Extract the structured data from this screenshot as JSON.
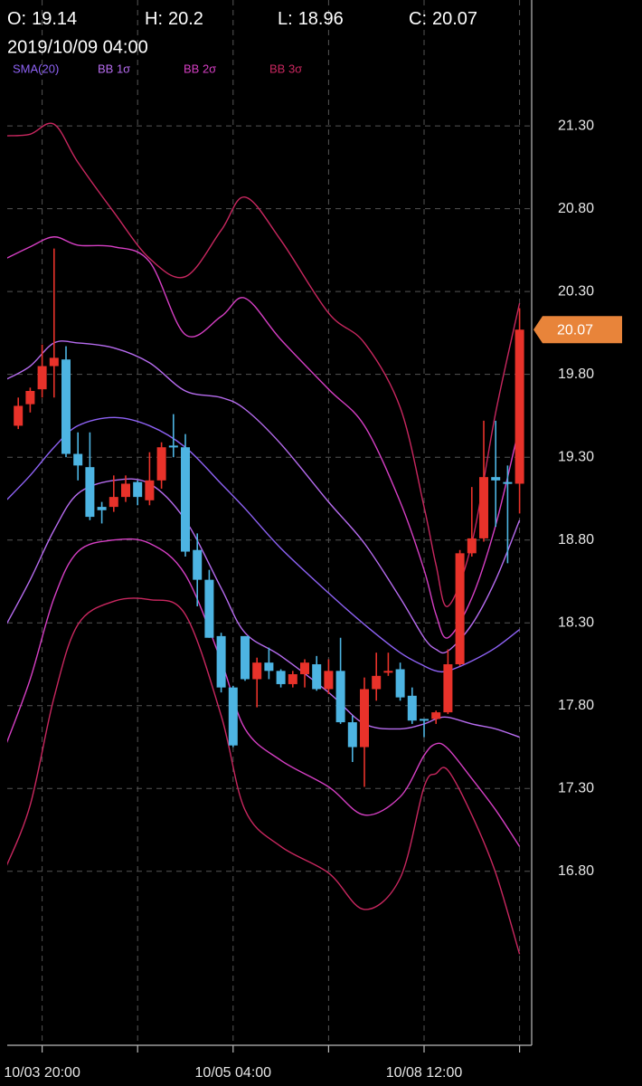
{
  "chart_data": {
    "type": "candlestick",
    "header": {
      "labels": [
        "O:",
        "H:",
        "L:",
        "C:"
      ],
      "datetime": "2019/10/09 04:00"
    },
    "categories": [
      null,
      null,
      "10/03 20:00",
      null,
      null,
      null,
      null,
      null,
      null,
      null,
      null,
      null,
      null,
      null,
      null,
      null,
      null,
      null,
      "10/05 04:00",
      null,
      null,
      null,
      null,
      null,
      null,
      null,
      null,
      null,
      null,
      null,
      null,
      null,
      null,
      null,
      "10/08 12:00",
      null,
      null,
      null,
      null,
      null,
      null,
      null,
      null
    ],
    "open": [
      19.49,
      19.62,
      19.71,
      19.85,
      19.89,
      19.32,
      19.24,
      19.0,
      19.0,
      19.06,
      19.15,
      19.04,
      19.16,
      19.37,
      19.36,
      18.74,
      18.56,
      18.22,
      17.91,
      18.22,
      17.96,
      18.06,
      18.01,
      17.93,
      17.99,
      18.05,
      17.9,
      18.01,
      17.7,
      17.55,
      17.9,
      18.0,
      18.02,
      17.86,
      17.72,
      17.72,
      17.76,
      18.05,
      18.72,
      18.81,
      19.18,
      19.15,
      19.14
    ],
    "high": [
      19.66,
      19.72,
      19.98,
      20.56,
      19.97,
      19.45,
      19.45,
      19.03,
      19.19,
      19.19,
      19.16,
      19.33,
      19.39,
      19.56,
      19.44,
      18.84,
      18.62,
      18.24,
      17.92,
      18.22,
      18.09,
      18.15,
      18.02,
      18.01,
      18.08,
      18.1,
      18.08,
      18.21,
      17.74,
      17.97,
      18.12,
      18.12,
      18.06,
      17.91,
      17.72,
      17.77,
      18.14,
      18.74,
      19.12,
      19.52,
      19.52,
      19.25,
      20.2
    ],
    "low": [
      19.47,
      19.57,
      19.66,
      19.66,
      19.3,
      19.16,
      18.92,
      18.9,
      18.97,
      19.03,
      19.01,
      19.01,
      19.11,
      19.3,
      18.7,
      18.4,
      18.21,
      17.88,
      17.55,
      17.95,
      17.79,
      17.96,
      17.91,
      17.91,
      17.91,
      17.89,
      17.87,
      17.69,
      17.46,
      17.31,
      17.83,
      17.98,
      17.83,
      17.69,
      17.61,
      17.69,
      17.75,
      18.04,
      18.7,
      18.79,
      18.88,
      18.66,
      18.96
    ],
    "close": [
      19.61,
      19.7,
      19.85,
      19.9,
      19.32,
      19.25,
      18.94,
      18.98,
      19.06,
      19.14,
      19.06,
      19.16,
      19.36,
      19.36,
      18.73,
      18.56,
      18.21,
      17.91,
      17.56,
      17.96,
      18.06,
      18.01,
      17.93,
      17.99,
      18.06,
      17.9,
      18.01,
      17.7,
      17.55,
      17.9,
      17.98,
      18.01,
      17.85,
      17.71,
      17.71,
      17.76,
      18.05,
      18.72,
      18.81,
      19.18,
      19.16,
      19.14,
      20.07
    ],
    "up_color": "#e8322a",
    "down_color": "#4db4e2",
    "indicators": [
      {
        "name": "SMA(20)",
        "color": "#8e62f5",
        "lines": [
          {
            "x": [
              -1,
              1,
              3,
              5,
              8,
              11,
              14,
              17,
              19,
              22,
              26,
              29,
              32,
              34,
              35,
              36,
              38,
              40,
              42
            ],
            "values": [
              19.04,
              19.19,
              19.36,
              19.49,
              19.54,
              19.49,
              19.36,
              19.14,
              18.99,
              18.75,
              18.48,
              18.29,
              18.12,
              18.04,
              18.01,
              18.01,
              18.07,
              18.15,
              18.26
            ]
          }
        ]
      },
      {
        "name": "BB 1σ",
        "color": "#b76cf0",
        "lines": [
          {
            "x": [
              -1,
              1,
              3,
              5,
              8,
              11,
              14,
              17,
              19,
              22,
              26,
              29,
              32,
              34,
              35,
              36,
              38,
              40,
              42
            ],
            "values": [
              19.77,
              19.85,
              19.99,
              19.99,
              19.96,
              19.87,
              19.7,
              19.66,
              19.59,
              19.38,
              19.03,
              18.78,
              18.45,
              18.21,
              18.14,
              18.13,
              18.29,
              18.56,
              18.92
            ]
          },
          {
            "x": [
              -1,
              1,
              3,
              5,
              8,
              11,
              14,
              17,
              19,
              22,
              26,
              29,
              32,
              34,
              35,
              36,
              38,
              40,
              42
            ],
            "values": [
              18.29,
              18.56,
              18.86,
              19.08,
              19.16,
              19.14,
              18.92,
              18.51,
              18.24,
              18.1,
              17.88,
              17.69,
              17.66,
              17.69,
              17.72,
              17.73,
              17.69,
              17.66,
              17.61
            ]
          }
        ]
      },
      {
        "name": "BB 2σ",
        "color": "#d63fc4",
        "lines": [
          {
            "x": [
              -1,
              1,
              3,
              5,
              8,
              11,
              14,
              17,
              19,
              22,
              26,
              29,
              32,
              34,
              35,
              36,
              38,
              40,
              42
            ],
            "values": [
              20.5,
              20.57,
              20.63,
              20.58,
              20.57,
              20.48,
              20.04,
              20.15,
              20.26,
              20.01,
              19.71,
              19.49,
              19.03,
              18.62,
              18.35,
              18.21,
              18.45,
              18.89,
              19.49
            ]
          },
          {
            "x": [
              -1,
              1,
              3,
              5,
              8,
              11,
              14,
              17,
              19,
              22,
              26,
              29,
              32,
              34,
              35,
              36,
              38,
              40,
              42
            ],
            "values": [
              17.57,
              17.96,
              18.45,
              18.73,
              18.8,
              18.78,
              18.59,
              18.07,
              17.66,
              17.47,
              17.31,
              17.14,
              17.25,
              17.5,
              17.57,
              17.54,
              17.36,
              17.17,
              16.95
            ]
          }
        ]
      },
      {
        "name": "BB 3σ",
        "color": "#c8275f",
        "lines": [
          {
            "x": [
              -1,
              1,
              3,
              5,
              8,
              11,
              14,
              17,
              19,
              22,
              26,
              29,
              32,
              34,
              35,
              36,
              38,
              40,
              42
            ],
            "values": [
              21.24,
              21.25,
              21.31,
              21.08,
              20.78,
              20.5,
              20.39,
              20.67,
              20.87,
              20.61,
              20.17,
              19.99,
              19.6,
              19.0,
              18.65,
              18.4,
              18.78,
              19.57,
              20.23
            ]
          },
          {
            "x": [
              -1,
              1,
              3,
              5,
              8,
              11,
              14,
              17,
              19,
              22,
              26,
              29,
              32,
              34,
              35,
              36,
              38,
              40,
              42
            ],
            "values": [
              16.83,
              17.2,
              17.85,
              18.29,
              18.43,
              18.44,
              18.35,
              17.74,
              17.17,
              16.95,
              16.79,
              16.57,
              16.76,
              17.31,
              17.39,
              17.41,
              17.14,
              16.79,
              16.3
            ]
          }
        ]
      }
    ],
    "ylim": [
      15.75,
      22.06
    ],
    "yticks": [
      {
        "value": 16.8,
        "label": "16.80"
      },
      {
        "value": 17.3,
        "label": "17.30"
      },
      {
        "value": 17.8,
        "label": "17.80"
      },
      {
        "value": 18.3,
        "label": "18.30"
      },
      {
        "value": 18.8,
        "label": "18.80"
      },
      {
        "value": 19.3,
        "label": "19.30"
      },
      {
        "value": 19.8,
        "label": "19.80"
      },
      {
        "value": 20.3,
        "label": "20.30"
      },
      {
        "value": 20.8,
        "label": "20.80"
      },
      {
        "value": 21.3,
        "label": "21.30"
      }
    ],
    "grid": true,
    "price_tag_color": "#e8843a"
  }
}
